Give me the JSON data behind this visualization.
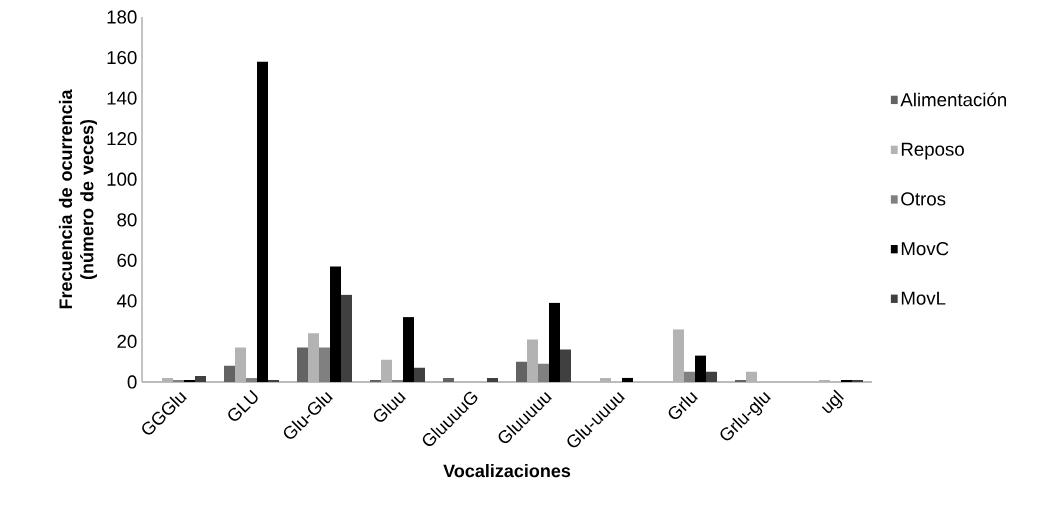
{
  "chart_data": {
    "type": "bar",
    "xlabel": "Vocalizaciones",
    "ylabel": "Frecuencia de ocurrencia (número de veces)",
    "categories": [
      "GGGlu",
      "GLU",
      "Glu-Glu",
      "Gluu",
      "GluuuuG",
      "Gluuuuu",
      "Glu-uuuu",
      "Grlu",
      "Grlu-glu",
      "ugl"
    ],
    "series": [
      {
        "name": "Alimentación",
        "color": "#636363",
        "values": [
          0,
          8,
          17,
          1,
          2,
          10,
          0,
          0,
          1,
          0
        ]
      },
      {
        "name": "Reposo",
        "color": "#b3b3b3",
        "values": [
          2,
          17,
          24,
          11,
          0,
          21,
          2,
          26,
          5,
          1
        ]
      },
      {
        "name": "Otros",
        "color": "#808080",
        "values": [
          1,
          2,
          17,
          1,
          0,
          9,
          0,
          5,
          0,
          0
        ]
      },
      {
        "name": "MovC",
        "color": "#000000",
        "values": [
          1,
          158,
          57,
          32,
          0,
          39,
          2,
          13,
          0,
          1
        ]
      },
      {
        "name": "MovL",
        "color": "#404040",
        "values": [
          3,
          1,
          43,
          7,
          2,
          16,
          0,
          5,
          0,
          1
        ]
      }
    ],
    "ylim": [
      0,
      180
    ],
    "yticks": [
      0,
      20,
      40,
      60,
      80,
      100,
      120,
      140,
      160,
      180
    ],
    "grid": false,
    "legend": "right"
  }
}
